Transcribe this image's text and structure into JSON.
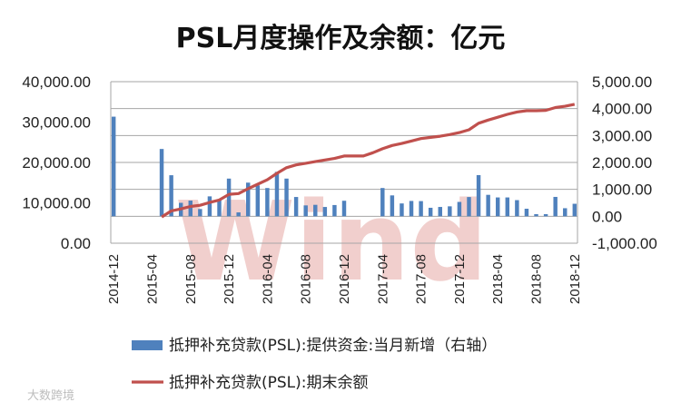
{
  "chart_data": {
    "type": "bar+line",
    "title": "PSL月度操作及余额：亿元",
    "x_tick_labels": [
      "2014-12",
      "2015-04",
      "2015-08",
      "2015-12",
      "2016-04",
      "2016-08",
      "2016-12",
      "2017-04",
      "2017-08",
      "2017-12",
      "2018-04",
      "2018-08",
      "2018-12"
    ],
    "left_axis": {
      "ticks": [
        "0.00",
        "10,000.00",
        "20,000.00",
        "30,000.00",
        "40,000.00"
      ],
      "ylim": [
        0,
        40000
      ]
    },
    "right_axis": {
      "ticks": [
        "-1,000.00",
        "0.00",
        "1,000.00",
        "2,000.00",
        "3,000.00",
        "4,000.00",
        "5,000.00"
      ],
      "ylim": [
        -1000,
        5000
      ]
    },
    "grid": true,
    "legend_position": "bottom",
    "series": [
      {
        "name": "抵押补充贷款(PSL):提供资金:当月新增（右轴）",
        "type": "bar",
        "axis": "right",
        "color": "#4f81bd",
        "x": [
          "2014-12",
          "2015-01",
          "2015-02",
          "2015-03",
          "2015-04",
          "2015-05",
          "2015-06",
          "2015-07",
          "2015-08",
          "2015-09",
          "2015-10",
          "2015-11",
          "2015-12",
          "2016-01",
          "2016-02",
          "2016-03",
          "2016-04",
          "2016-05",
          "2016-06",
          "2016-07",
          "2016-08",
          "2016-09",
          "2016-10",
          "2016-11",
          "2016-12",
          "2017-01",
          "2017-02",
          "2017-03",
          "2017-04",
          "2017-05",
          "2017-06",
          "2017-07",
          "2017-08",
          "2017-09",
          "2017-10",
          "2017-11",
          "2017-12",
          "2018-01",
          "2018-02",
          "2018-03",
          "2018-04",
          "2018-05",
          "2018-06",
          "2018-07",
          "2018-08",
          "2018-09",
          "2018-10",
          "2018-11",
          "2018-12"
        ],
        "values": [
          3700,
          null,
          null,
          null,
          null,
          2500,
          1525,
          500,
          583,
          270,
          740,
          610,
          1400,
          145,
          1250,
          1150,
          1050,
          1650,
          1400,
          717,
          405,
          426,
          346,
          418,
          577,
          null,
          null,
          null,
          1050,
          776,
          477,
          570,
          564,
          316,
          347,
          370,
          534,
          715,
          1530,
          797,
          700,
          700,
          600,
          280,
          80,
          80,
          720,
          300,
          465
        ]
      },
      {
        "name": "抵押补充贷款(PSL):期末余额",
        "type": "line",
        "axis": "left",
        "color": "#c0504d",
        "x": [
          "2014-12",
          "2015-01",
          "2015-02",
          "2015-03",
          "2015-04",
          "2015-05",
          "2015-06",
          "2015-07",
          "2015-08",
          "2015-09",
          "2015-10",
          "2015-11",
          "2015-12",
          "2016-01",
          "2016-02",
          "2016-03",
          "2016-04",
          "2016-05",
          "2016-06",
          "2016-07",
          "2016-08",
          "2016-09",
          "2016-10",
          "2016-11",
          "2016-12",
          "2017-01",
          "2017-02",
          "2017-03",
          "2017-04",
          "2017-05",
          "2017-06",
          "2017-07",
          "2017-08",
          "2017-09",
          "2017-10",
          "2017-11",
          "2017-12",
          "2018-01",
          "2018-02",
          "2018-03",
          "2018-04",
          "2018-05",
          "2018-06",
          "2018-07",
          "2018-08",
          "2018-09",
          "2018-10",
          "2018-11",
          "2018-12"
        ],
        "values": [
          null,
          null,
          null,
          null,
          null,
          6500,
          8000,
          8500,
          9100,
          9400,
          10100,
          10700,
          12100,
          12300,
          13500,
          14600,
          15700,
          17300,
          18700,
          19400,
          19800,
          20200,
          20600,
          21000,
          21600,
          21600,
          21600,
          22400,
          23400,
          24200,
          24700,
          25300,
          25900,
          26200,
          26500,
          26900,
          27400,
          28100,
          29700,
          30500,
          31200,
          31900,
          32500,
          32800,
          32800,
          32900,
          33600,
          33900,
          34400
        ]
      }
    ]
  },
  "watermark": {
    "brand_text": "Wind",
    "source_text": "大数跨境",
    "brand_color": "#e6a8a4"
  }
}
